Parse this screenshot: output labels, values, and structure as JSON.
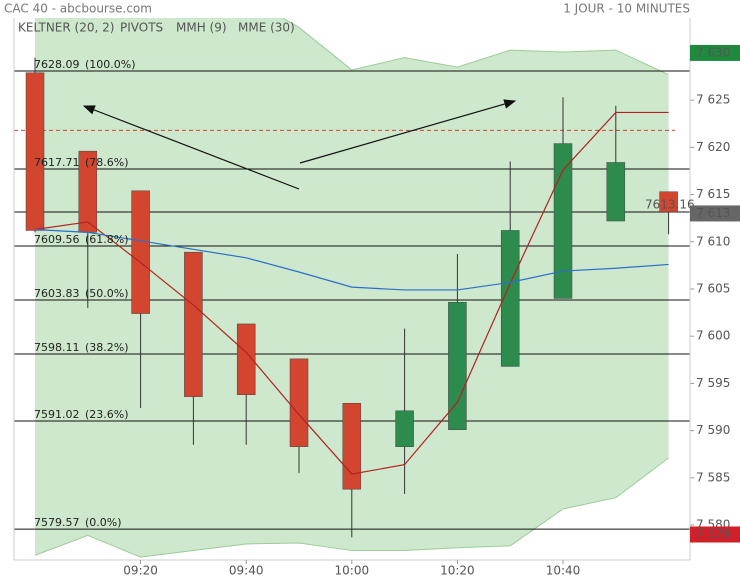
{
  "chart_data": {
    "type": "candlestick",
    "title": "CAC 40 - abcbourse.com",
    "subtitle": "1 JOUR - 10 MINUTES",
    "categories": [
      null,
      null,
      "09:20",
      null,
      "09:40",
      null,
      "10:00",
      null,
      "10:20",
      null,
      "10:40",
      null,
      null
    ],
    "open": [
      7627.9,
      7619.6,
      7615.4,
      7608.9,
      7601.3,
      7597.6,
      7592.9,
      7588.3,
      7590.1,
      7596.8,
      7604.0,
      7612.2,
      7615.3
    ],
    "high": [
      7629.5,
      7619.6,
      7615.4,
      7608.9,
      7601.3,
      7597.6,
      7592.9,
      7600.8,
      7608.7,
      7618.5,
      7625.3,
      7624.4,
      7615.3
    ],
    "low": [
      7611.0,
      7603.0,
      7592.4,
      7588.5,
      7588.5,
      7585.5,
      7578.7,
      7583.3,
      7590.1,
      7596.8,
      7604.0,
      7612.2,
      7610.8
    ],
    "close": [
      7611.2,
      7611.0,
      7602.4,
      7593.6,
      7593.8,
      7588.3,
      7583.8,
      7592.1,
      7603.6,
      7611.2,
      7620.4,
      7618.4,
      7613.16
    ],
    "up_color": "#2e8b4e",
    "down_color": "#d2452f",
    "series": [
      {
        "name": "MMH (9)",
        "color": "#b22222",
        "values": [
          7611.3,
          7612.1,
          7607.8,
          7603.3,
          7598.3,
          7591.7,
          7585.4,
          7586.4,
          7593.0,
          7605.6,
          7617.6,
          7623.7,
          7623.7
        ]
      },
      {
        "name": "MME (30)",
        "color": "#2a6fc9",
        "values": [
          7611.3,
          7611.0,
          7610.1,
          7609.2,
          7608.3,
          7606.8,
          7605.2,
          7604.9,
          7604.9,
          7605.7,
          7606.9,
          7607.2,
          7607.6
        ]
      }
    ],
    "keltner": {
      "name": "KELTNER (20, 2)",
      "color": "#3c9a4a",
      "fill": "#cde8cc",
      "upper": [
        7636,
        7636,
        7636,
        7636,
        7636,
        7632.7,
        7628.2,
        7629.5,
        7628.5,
        7630.3,
        7630.1,
        7630.3,
        7627.7
      ],
      "lower": [
        7576.8,
        7578.9,
        7576.6,
        7577.3,
        7578.0,
        7578.1,
        7577.3,
        7577.3,
        7577.6,
        7577.8,
        7581.7,
        7582.9,
        7587.1
      ]
    },
    "pivots": {
      "name": "PIVOTS",
      "color": "#d2452f",
      "values": [
        7621.8
      ]
    },
    "fibonacci": {
      "prices": [
        7628.09,
        7617.71,
        7609.56,
        7603.83,
        7598.11,
        7591.02,
        7579.57
      ],
      "percents": [
        100,
        78.6,
        61.8,
        50,
        38.2,
        23.6,
        0
      ],
      "percent_labels": [
        "(100.0%)",
        "(78.6%)",
        "(61.8%)",
        "(50.0%)",
        "(38.2%)",
        "(23.6%)",
        "(0.0%)"
      ]
    },
    "last_price": 7613.16,
    "markers": [
      {
        "value": 7630,
        "label": "7 630",
        "color": "#1e8a3e"
      },
      {
        "value": 7613,
        "label": "7 613",
        "color": "#666666"
      },
      {
        "value": 7579,
        "label": "7 579",
        "color": "#d0202a"
      }
    ],
    "ylim": [
      7576.3,
      7633.7
    ],
    "yticks": [
      {
        "value": 7580,
        "label": "7 580"
      },
      {
        "value": 7585,
        "label": "7 585"
      },
      {
        "value": 7590,
        "label": "7 590"
      },
      {
        "value": 7595,
        "label": "7 595"
      },
      {
        "value": 7600,
        "label": "7 600"
      },
      {
        "value": 7605,
        "label": "7 605"
      },
      {
        "value": 7610,
        "label": "7 610"
      },
      {
        "value": 7615,
        "label": "7 615"
      },
      {
        "value": 7620,
        "label": "7 620"
      },
      {
        "value": 7625,
        "label": "7 625"
      },
      {
        "value": 7630,
        "label": "7 630"
      }
    ]
  }
}
